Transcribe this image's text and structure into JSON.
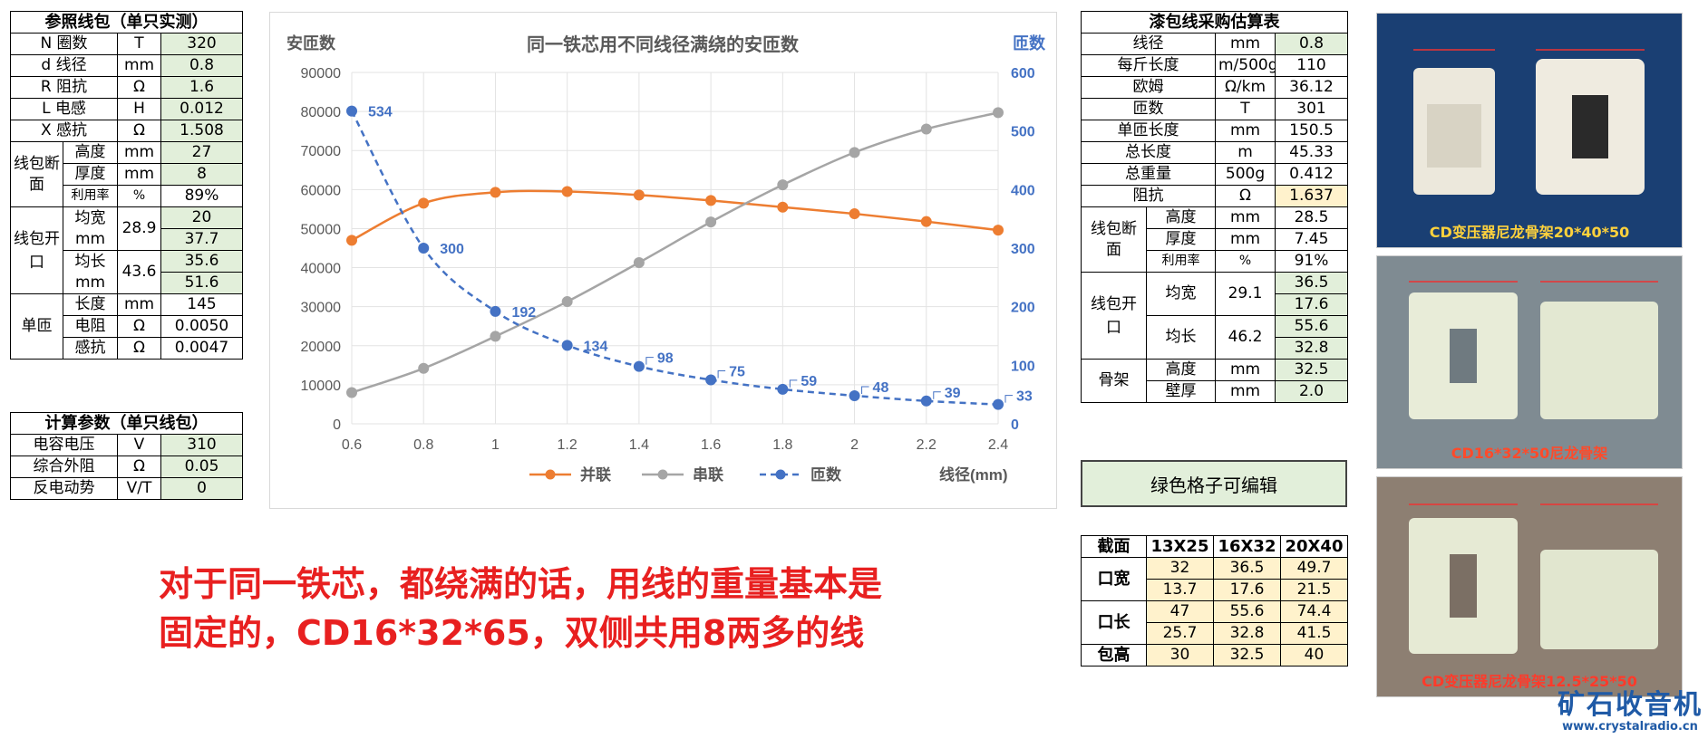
{
  "ref_coil": {
    "title": "参照线包（单只实测）",
    "rows": [
      [
        "N 圈数",
        "T",
        "320"
      ],
      [
        "d 线径",
        "mm",
        "0.8"
      ],
      [
        "R 阻抗",
        "Ω",
        "1.6"
      ],
      [
        "L 电感",
        "H",
        "0.012"
      ],
      [
        "X 感抗",
        "Ω",
        "1.508"
      ]
    ],
    "section_label": "线包断面",
    "section": [
      [
        "高度",
        "mm",
        "27"
      ],
      [
        "厚度",
        "mm",
        "8"
      ],
      [
        "利用率",
        "%",
        "89%"
      ]
    ],
    "opening_label": "线包开口",
    "opening_w_label": "均宽mm",
    "opening_w_calc": "28.9",
    "opening_w_vals": [
      "20",
      "37.7"
    ],
    "opening_l_label": "均长mm",
    "opening_l_calc": "43.6",
    "opening_l_vals": [
      "35.6",
      "51.6"
    ],
    "turn_label": "单匝",
    "turn": [
      [
        "长度",
        "mm",
        "145"
      ],
      [
        "电阻",
        "Ω",
        "0.0050"
      ],
      [
        "感抗",
        "Ω",
        "0.0047"
      ]
    ]
  },
  "calc_params": {
    "title": "计算参数（单只线包）",
    "rows": [
      [
        "电容电压",
        "V",
        "310"
      ],
      [
        "综合外阻",
        "Ω",
        "0.05"
      ],
      [
        "反电动势",
        "V/T",
        "0"
      ]
    ]
  },
  "purchase": {
    "title": "漆包线采购估算表",
    "rows": [
      [
        "线径",
        "mm",
        "0.8"
      ],
      [
        "每斤长度",
        "m/500g",
        "110"
      ],
      [
        "欧姆",
        "Ω/km",
        "36.12"
      ],
      [
        "匝数",
        "T",
        "301"
      ],
      [
        "单匝长度",
        "mm",
        "150.5"
      ],
      [
        "总长度",
        "m",
        "45.33"
      ],
      [
        "总重量",
        "500g",
        "0.412"
      ],
      [
        "阻抗",
        "Ω",
        "1.637"
      ]
    ],
    "section_label": "线包断面",
    "section": [
      [
        "高度",
        "mm",
        "28.5"
      ],
      [
        "厚度",
        "mm",
        "7.45"
      ],
      [
        "利用率",
        "%",
        "91%"
      ]
    ],
    "opening_label": "线包开口",
    "opening_w_label": "均宽",
    "opening_w_calc": "29.1",
    "opening_w_vals": [
      "36.5",
      "17.6"
    ],
    "opening_l_label": "均长",
    "opening_l_calc": "46.2",
    "opening_l_vals": [
      "55.6",
      "32.8"
    ],
    "frame_label": "骨架",
    "frame": [
      [
        "高度",
        "mm",
        "32.5"
      ],
      [
        "壁厚",
        "mm",
        "2.0"
      ]
    ]
  },
  "note": "绿色格子可编辑",
  "sizes": {
    "header": [
      "截面",
      "13X25",
      "16X32",
      "20X40"
    ],
    "kou_kuan": "口宽",
    "kou_kuan_vals": [
      [
        "32",
        "36.5",
        "49.7"
      ],
      [
        "13.7",
        "17.6",
        "21.5"
      ]
    ],
    "kou_chang": "口长",
    "kou_chang_vals": [
      [
        "47",
        "55.6",
        "74.4"
      ],
      [
        "25.7",
        "32.8",
        "41.5"
      ]
    ],
    "bao_gao": "包高",
    "bao_gao_vals": [
      "30",
      "32.5",
      "40"
    ]
  },
  "big_text": [
    "对于同一铁芯，都绕满的话，用线的重量基本是",
    "固定的，CD16*32*65，双侧共用8两多的线"
  ],
  "photos": [
    {
      "caption": "CD变压器尼龙骨架20*40*50",
      "bg": "#1a3f73",
      "cap_color": "#ffd23c"
    },
    {
      "caption": "CD16*32*50尼龙骨架",
      "bg": "#7f8b92",
      "cap_color": "#ff4a2a"
    },
    {
      "caption": "CD变压器尼龙骨架12.5*25*50",
      "bg": "#8d7f72",
      "cap_color": "#ff3a2a"
    }
  ],
  "logo": {
    "line1": "矿石收音机",
    "line2": "www.crystalradio.cn"
  },
  "chart_data": {
    "type": "line",
    "title": "同一铁芯用不同线径满绕的安匝数",
    "ylabel_left": "安匝数",
    "ylabel_right": "匝数",
    "xlabel": "线径(mm)",
    "x": [
      0.6,
      0.8,
      1.0,
      1.2,
      1.4,
      1.6,
      1.8,
      2.0,
      2.2,
      2.4
    ],
    "xticks": [
      "0.6",
      "0.8",
      "1",
      "1.2",
      "1.4",
      "1.6",
      "1.8",
      "2",
      "2.2",
      "2.4"
    ],
    "ylim_left": [
      0,
      90000
    ],
    "yticks_left": [
      "0",
      "10000",
      "20000",
      "30000",
      "40000",
      "50000",
      "60000",
      "70000",
      "80000",
      "90000"
    ],
    "ylim_right": [
      0,
      600
    ],
    "yticks_right": [
      "0",
      "100",
      "200",
      "300",
      "400",
      "500",
      "600"
    ],
    "grid": true,
    "legend_position": "bottom",
    "series": [
      {
        "name": "并联",
        "axis": "left",
        "color": "#ed7d31",
        "dashed": false,
        "values": [
          47000,
          56500,
          59300,
          59500,
          58600,
          57200,
          55500,
          53800,
          51800,
          49600
        ]
      },
      {
        "name": "串联",
        "axis": "left",
        "color": "#a5a5a5",
        "dashed": false,
        "values": [
          8000,
          14200,
          22400,
          31300,
          41300,
          51700,
          61200,
          69500,
          75500,
          79700
        ]
      },
      {
        "name": "匝数",
        "axis": "right",
        "color": "#4472c4",
        "dashed": true,
        "values": [
          534,
          300,
          192,
          134,
          98,
          75,
          59,
          48,
          39,
          33
        ],
        "labels": [
          "534",
          "300",
          "192",
          "134",
          "98",
          "75",
          "59",
          "48",
          "39",
          "33"
        ]
      }
    ]
  }
}
